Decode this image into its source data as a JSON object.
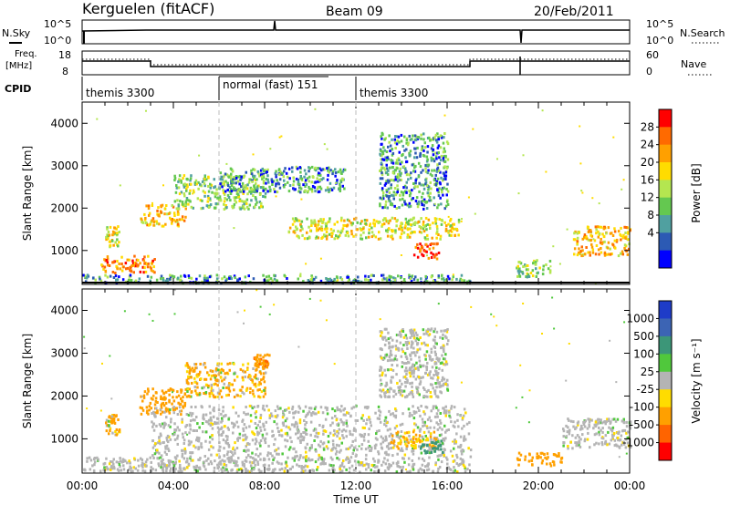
{
  "header": {
    "station": "Kerguelen (fitACF)",
    "beam": "Beam 09",
    "date": "20/Feb/2011"
  },
  "noise_panel": {
    "left_label": "N.Sky",
    "right_label": "N.Search",
    "left_ticks": [
      "10^5",
      "10^0"
    ],
    "right_ticks": [
      "10^5",
      "10^0"
    ]
  },
  "freq_panel": {
    "left_label_1": "Freq.",
    "left_label_2": "[MHz]",
    "right_label": "Nave",
    "left_ticks": [
      "18",
      "8"
    ],
    "right_ticks": [
      "60",
      "0"
    ]
  },
  "cpid": {
    "label": "CPID",
    "segments": [
      {
        "name": "themis 3300",
        "start_hr": 0,
        "end_hr": 6
      },
      {
        "name": "normal (fast) 151",
        "start_hr": 6,
        "end_hr": 12
      },
      {
        "name": "themis 3300",
        "start_hr": 12,
        "end_hr": 24
      }
    ]
  },
  "power_colorbar": {
    "label": "Power [dB]",
    "ticks": [
      "28",
      "24",
      "20",
      "16",
      "12",
      "8",
      "4"
    ],
    "colors": [
      "#ff0000",
      "#ff6a00",
      "#ffa000",
      "#ffdc00",
      "#b4e650",
      "#64c850",
      "#50a0a0",
      "#2c5ab4",
      "#0000ff"
    ]
  },
  "velocity_colorbar": {
    "label": "Velocity [m s⁻¹]",
    "ticks": [
      "1000",
      "500",
      "100",
      "25",
      "-25",
      "-100",
      "-500",
      "-1000"
    ],
    "colors": [
      "#1e3cc8",
      "#3c64b4",
      "#3c9678",
      "#50c83c",
      "#b4b4b4",
      "#ffdc00",
      "#ffa000",
      "#ff6400",
      "#ff0000"
    ]
  },
  "chart_data": [
    {
      "type": "heatmap",
      "title": "",
      "ylabel": "Slant Range [km]",
      "xlabel": "",
      "xlim": [
        0,
        24
      ],
      "ylim": [
        200,
        4500
      ],
      "y_ticks": [
        "1000",
        "2000",
        "3000",
        "4000"
      ],
      "y_tick_values": [
        1000,
        2000,
        3000,
        4000
      ],
      "quantity": "Power [dB]",
      "echo_regions": [
        {
          "x_range": [
            0,
            17
          ],
          "y_range": [
            250,
            450
          ],
          "typical_value": 8
        },
        {
          "x_range": [
            0.8,
            3.2
          ],
          "y_range": [
            500,
            900
          ],
          "typical_value": 24
        },
        {
          "x_range": [
            1.0,
            1.6
          ],
          "y_range": [
            1100,
            1600
          ],
          "typical_value": 16
        },
        {
          "x_range": [
            2.5,
            4.5
          ],
          "y_range": [
            1600,
            2100
          ],
          "typical_value": 20
        },
        {
          "x_range": [
            4.0,
            8.0
          ],
          "y_range": [
            2000,
            2800
          ],
          "typical_value": 12
        },
        {
          "x_range": [
            6.0,
            11.5
          ],
          "y_range": [
            2400,
            3000
          ],
          "typical_value": 8
        },
        {
          "x_range": [
            9.0,
            16.5
          ],
          "y_range": [
            1300,
            1800
          ],
          "typical_value": 16
        },
        {
          "x_range": [
            14.5,
            15.6
          ],
          "y_range": [
            800,
            1200
          ],
          "typical_value": 28
        },
        {
          "x_range": [
            13.0,
            16.0
          ],
          "y_range": [
            2000,
            3800
          ],
          "typical_value": 8
        },
        {
          "x_range": [
            19.0,
            20.5
          ],
          "y_range": [
            400,
            800
          ],
          "typical_value": 12
        },
        {
          "x_range": [
            21.5,
            24
          ],
          "y_range": [
            900,
            1600
          ],
          "typical_value": 20
        }
      ]
    },
    {
      "type": "heatmap",
      "title": "",
      "ylabel": "Slant Range [km]",
      "xlabel": "Time UT",
      "xlim": [
        0,
        24
      ],
      "ylim": [
        200,
        4500
      ],
      "x_ticks": [
        "00:00",
        "04:00",
        "08:00",
        "12:00",
        "16:00",
        "20:00",
        "00:00"
      ],
      "x_tick_values": [
        0,
        4,
        8,
        12,
        16,
        20,
        24
      ],
      "y_ticks": [
        "1000",
        "2000",
        "3000",
        "4000"
      ],
      "y_tick_values": [
        1000,
        2000,
        3000,
        4000
      ],
      "quantity": "Velocity [m s⁻¹]",
      "echo_regions": [
        {
          "x_range": [
            0,
            17
          ],
          "y_range": [
            250,
            600
          ],
          "typical_value": 0
        },
        {
          "x_range": [
            1.0,
            1.6
          ],
          "y_range": [
            1100,
            1600
          ],
          "typical_value": -150
        },
        {
          "x_range": [
            2.5,
            4.5
          ],
          "y_range": [
            1600,
            2200
          ],
          "typical_value": -300
        },
        {
          "x_range": [
            4.5,
            8.0
          ],
          "y_range": [
            2000,
            2800
          ],
          "typical_value": -150
        },
        {
          "x_range": [
            7.5,
            8.2
          ],
          "y_range": [
            2700,
            3000
          ],
          "typical_value": -400
        },
        {
          "x_range": [
            3.0,
            17.0
          ],
          "y_range": [
            600,
            1800
          ],
          "typical_value": 0
        },
        {
          "x_range": [
            13.5,
            15.5
          ],
          "y_range": [
            800,
            1200
          ],
          "typical_value": -100
        },
        {
          "x_range": [
            14.8,
            15.8
          ],
          "y_range": [
            700,
            1000
          ],
          "typical_value": 200
        },
        {
          "x_range": [
            13.0,
            16.0
          ],
          "y_range": [
            2000,
            3600
          ],
          "typical_value": 0
        },
        {
          "x_range": [
            19.0,
            21.0
          ],
          "y_range": [
            400,
            700
          ],
          "typical_value": -300
        },
        {
          "x_range": [
            21.0,
            24
          ],
          "y_range": [
            800,
            1500
          ],
          "typical_value": 0
        }
      ]
    }
  ]
}
